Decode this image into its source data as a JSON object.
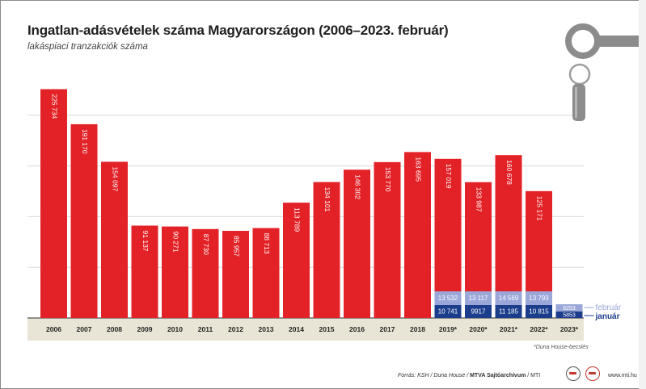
{
  "title": "Ingatlan-adásvételek száma Magyarországon (2006–2023. február)",
  "subtitle": "lakáspiaci tranzakciók száma",
  "footnote": "*Duna House-becslés",
  "source": {
    "prefix": "Forrás: KSH / Duna House / ",
    "bold": "MTVA Sajtóarchívum",
    "suffix": " / MTI"
  },
  "site": "www.mti.hu",
  "colors": {
    "annual": "#e32227",
    "january": "#1b3d8c",
    "february": "#9aa7d8",
    "grid": "#d9d9d9",
    "axis_band": "#e9e5d6"
  },
  "icon": "key-icon",
  "chart_data": {
    "type": "bar",
    "ylim": [
      0,
      250000
    ],
    "categories": [
      "2006",
      "2007",
      "2008",
      "2009",
      "2010",
      "2011",
      "2012",
      "2013",
      "2014",
      "2015",
      "2016",
      "2017",
      "2018",
      "2019*",
      "2020*",
      "2021*",
      "2022*",
      "2023*"
    ],
    "annual": {
      "values": [
        225734,
        191170,
        154097,
        91137,
        90271,
        87730,
        85957,
        88713,
        113789,
        134101,
        146302,
        153770,
        163695,
        157019,
        133987,
        160678,
        125171,
        null
      ],
      "labels": [
        "225 734",
        "191 170",
        "154 097",
        "91 137",
        "90 271",
        "87 730",
        "85 957",
        "88 713",
        "113 789",
        "134 101",
        "146 302",
        "153 770",
        "163 695",
        "157 019",
        "133 987",
        "160 678",
        "125 171",
        ""
      ]
    },
    "series": [
      {
        "name": "január",
        "values": [
          null,
          null,
          null,
          null,
          null,
          null,
          null,
          null,
          null,
          null,
          null,
          null,
          null,
          10741,
          9917,
          11185,
          10815,
          5853
        ],
        "labels": [
          "",
          "",
          "",
          "",
          "",
          "",
          "",
          "",
          "",
          "",
          "",
          "",
          "",
          "10 741",
          "9917",
          "11 185",
          "10 815",
          "5853"
        ]
      },
      {
        "name": "február",
        "values": [
          null,
          null,
          null,
          null,
          null,
          null,
          null,
          null,
          null,
          null,
          null,
          null,
          null,
          13532,
          13117,
          14569,
          13793,
          6253
        ],
        "labels": [
          "",
          "",
          "",
          "",
          "",
          "",
          "",
          "",
          "",
          "",
          "",
          "",
          "",
          "13 532",
          "13 117",
          "14 569",
          "13 793",
          "6253"
        ]
      }
    ],
    "legend": [
      "február",
      "január"
    ]
  }
}
